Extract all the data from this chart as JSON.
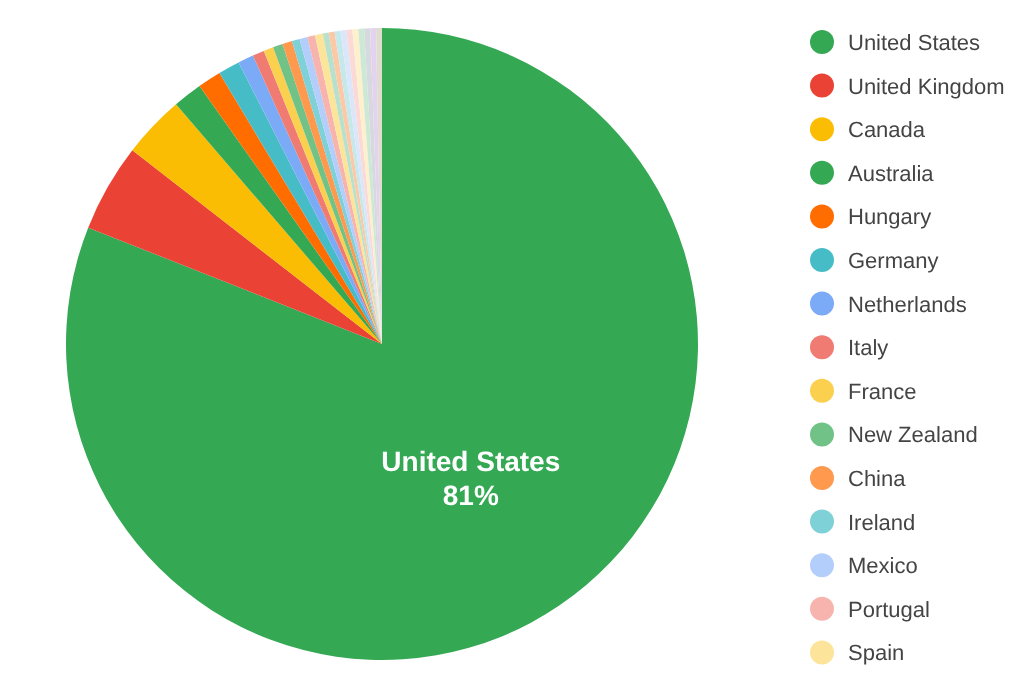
{
  "chart_data": {
    "type": "pie",
    "categories": [
      "United States",
      "United Kingdom",
      "Canada",
      "Australia",
      "Hungary",
      "Germany",
      "Netherlands",
      "Italy",
      "France",
      "New Zealand",
      "China",
      "Ireland",
      "Mexico",
      "Portugal",
      "Spain",
      null,
      null,
      null,
      null,
      null,
      null,
      null,
      null,
      null,
      null
    ],
    "values": [
      81,
      4.5,
      3.2,
      1.5,
      1.2,
      1.1,
      0.8,
      0.6,
      0.5,
      0.5,
      0.5,
      0.4,
      0.4,
      0.4,
      0.4,
      0.3,
      0.3,
      0.3,
      0.3,
      0.3,
      0.3,
      0.3,
      0.3,
      0.3,
      0.3
    ],
    "colors": [
      "#34a853",
      "#ea4335",
      "#fbbc04",
      "#34a853",
      "#ff6d01",
      "#46bdc6",
      "#7baaf7",
      "#f07b72",
      "#fcd04f",
      "#71c287",
      "#ff994d",
      "#7ed1d7",
      "#b3cefb",
      "#f7b4ae",
      "#fde49b",
      "#b7e1cd",
      "#fcc8a5",
      "#c5e8ea",
      "#dbe6fb",
      "#fbd9d6",
      "#fef0cd",
      "#cde9d6",
      "#d6d9dd",
      "#e3d3ef",
      "#e0dcd0"
    ],
    "value_labels": [
      "81%",
      null,
      null,
      null,
      null,
      null,
      null,
      null,
      null,
      null,
      null,
      null,
      null,
      null,
      null,
      null,
      null,
      null,
      null,
      null,
      null,
      null,
      null,
      null,
      null
    ],
    "legend": "right"
  }
}
